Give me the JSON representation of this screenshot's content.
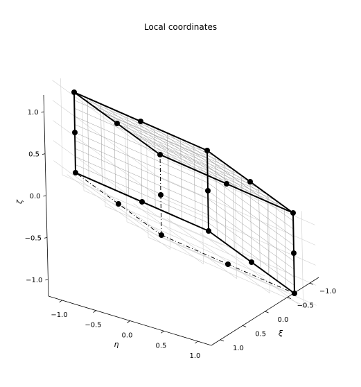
{
  "chart_data": {
    "type": "scatter",
    "subtype": "3d-wireframe-cube",
    "title": "Local coordinates",
    "axes": {
      "xi": {
        "label": "ξ",
        "ticks": [
          "−1.0",
          "−0.5",
          "0.0",
          "0.5",
          "1.0"
        ],
        "range": [
          -1,
          1
        ]
      },
      "eta": {
        "label": "η",
        "ticks": [
          "−1.0",
          "−0.5",
          "0.0",
          "0.5",
          "1.0"
        ],
        "range": [
          -1,
          1
        ]
      },
      "zeta": {
        "label": "ζ",
        "ticks": [
          "−1.0",
          "−0.5",
          "0.0",
          "0.5",
          "1.0"
        ],
        "range": [
          -1,
          1
        ]
      }
    },
    "grid": true,
    "nodes": [
      {
        "xi": -1,
        "eta": -1,
        "zeta": 1
      },
      {
        "xi": 0,
        "eta": -1,
        "zeta": 1
      },
      {
        "xi": 1,
        "eta": -1,
        "zeta": 1
      },
      {
        "xi": -1,
        "eta": 0,
        "zeta": 1
      },
      {
        "xi": 1,
        "eta": 0,
        "zeta": 1
      },
      {
        "xi": -1,
        "eta": 1,
        "zeta": 1
      },
      {
        "xi": 0,
        "eta": 1,
        "zeta": 1
      },
      {
        "xi": 1,
        "eta": 1,
        "zeta": 1
      },
      {
        "xi": -1,
        "eta": -1,
        "zeta": 0
      },
      {
        "xi": 1,
        "eta": -1,
        "zeta": 0
      },
      {
        "xi": -1,
        "eta": 1,
        "zeta": 0
      },
      {
        "xi": 1,
        "eta": 1,
        "zeta": 0
      },
      {
        "xi": -1,
        "eta": -1,
        "zeta": -1
      },
      {
        "xi": 0,
        "eta": -1,
        "zeta": -1
      },
      {
        "xi": 1,
        "eta": -1,
        "zeta": -1
      },
      {
        "xi": -1,
        "eta": 0,
        "zeta": -1
      },
      {
        "xi": 1,
        "eta": 0,
        "zeta": -1
      },
      {
        "xi": -1,
        "eta": 1,
        "zeta": -1
      },
      {
        "xi": 0,
        "eta": 1,
        "zeta": -1
      },
      {
        "xi": 1,
        "eta": 1,
        "zeta": -1
      }
    ],
    "colors": {
      "node": "#000000",
      "edge": "#000000",
      "grid": "#9a9a9a",
      "pane_grid": "#d0d0d0"
    }
  }
}
